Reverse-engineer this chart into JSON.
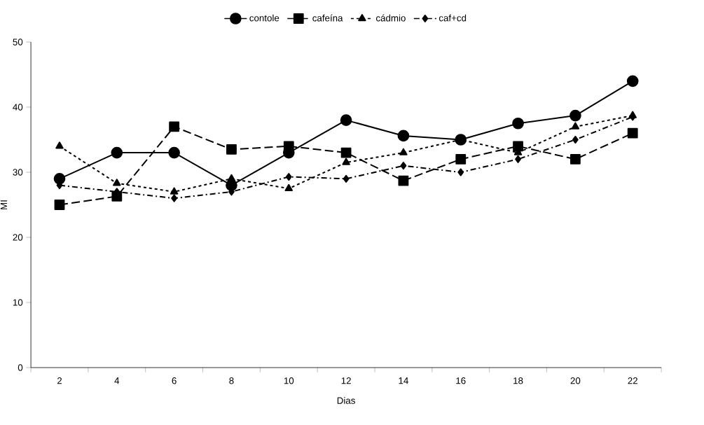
{
  "chart_data": {
    "type": "line",
    "xlabel": "Dias",
    "ylabel": "MI",
    "categories": [
      "2",
      "4",
      "6",
      "8",
      "10",
      "12",
      "14",
      "16",
      "18",
      "20",
      "22"
    ],
    "series": [
      {
        "name": "contole",
        "color": "#000000",
        "marker": "circle",
        "line_style": "solid",
        "values": [
          29,
          33,
          33,
          28,
          33,
          38,
          35.6,
          35,
          37.5,
          38.7,
          44
        ]
      },
      {
        "name": "cafeína",
        "color": "#000000",
        "marker": "square",
        "line_style": "dashed",
        "values": [
          25,
          26.3,
          37,
          33.5,
          34,
          33,
          28.7,
          32,
          34,
          32,
          36
        ]
      },
      {
        "name": "cádmio",
        "color": "#000000",
        "marker": "triangle",
        "line_style": "dotted",
        "values": [
          34,
          28.3,
          27,
          29,
          27.5,
          31.5,
          33,
          35,
          33,
          37,
          38.7
        ]
      },
      {
        "name": "caf+cd",
        "color": "#000000",
        "marker": "diamond",
        "line_style": "dashdot",
        "values": [
          28,
          27,
          26,
          27,
          29.3,
          29,
          31,
          30,
          32,
          35,
          38.5
        ]
      }
    ],
    "ylim": [
      0,
      50
    ],
    "yticks": [
      0,
      10,
      20,
      30,
      40,
      50
    ],
    "grid": false,
    "legend": "top"
  }
}
